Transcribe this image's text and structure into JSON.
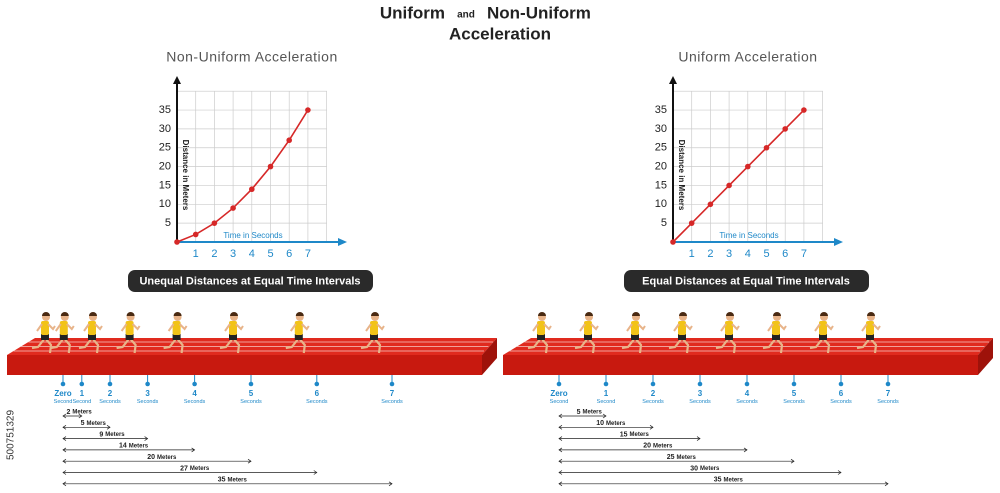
{
  "header": {
    "word1": "Uniform",
    "and": "and",
    "word2": "Non-Uniform",
    "line2": "Acceleration"
  },
  "stock_id": "500751329",
  "panels": [
    {
      "title": "Non-Uniform Acceleration",
      "y_label": "Distance in Meters",
      "x_label": "Time in Seconds",
      "x": [
        0,
        1,
        2,
        3,
        4,
        5,
        6,
        7
      ],
      "values": [
        0,
        2,
        5,
        9,
        14,
        20,
        27,
        35
      ],
      "xlim": [
        0,
        8
      ],
      "ylim": [
        0,
        40
      ],
      "xticks": [
        1,
        2,
        3,
        4,
        5,
        6,
        7
      ],
      "yticks": [
        5,
        10,
        15,
        20,
        25,
        30,
        35
      ],
      "color": "#d62828",
      "grid": true,
      "banner": "Unequal Distances at Equal Time Intervals",
      "markers": [
        {
          "label": "Zero",
          "unit": "Second"
        },
        {
          "label": "1",
          "unit": "Second"
        },
        {
          "label": "2",
          "unit": "Seconds"
        },
        {
          "label": "3",
          "unit": "Seconds"
        },
        {
          "label": "4",
          "unit": "Seconds"
        },
        {
          "label": "5",
          "unit": "Seconds"
        },
        {
          "label": "6",
          "unit": "Seconds"
        },
        {
          "label": "7",
          "unit": "Seconds"
        }
      ],
      "distance_unit": "Meters"
    },
    {
      "title": "Uniform Acceleration",
      "y_label": "Distance in Meters",
      "x_label": "Time in Seconds",
      "x": [
        0,
        1,
        2,
        3,
        4,
        5,
        6,
        7
      ],
      "values": [
        0,
        5,
        10,
        15,
        20,
        25,
        30,
        35
      ],
      "xlim": [
        0,
        8
      ],
      "ylim": [
        0,
        40
      ],
      "xticks": [
        1,
        2,
        3,
        4,
        5,
        6,
        7
      ],
      "yticks": [
        5,
        10,
        15,
        20,
        25,
        30,
        35
      ],
      "color": "#d62828",
      "grid": true,
      "banner": "Equal Distances at Equal Time Intervals",
      "markers": [
        {
          "label": "Zero",
          "unit": "Second"
        },
        {
          "label": "1",
          "unit": "Second"
        },
        {
          "label": "2",
          "unit": "Seconds"
        },
        {
          "label": "3",
          "unit": "Seconds"
        },
        {
          "label": "4",
          "unit": "Seconds"
        },
        {
          "label": "5",
          "unit": "Seconds"
        },
        {
          "label": "6",
          "unit": "Seconds"
        },
        {
          "label": "7",
          "unit": "Seconds"
        }
      ],
      "distance_unit": "Meters"
    }
  ]
}
